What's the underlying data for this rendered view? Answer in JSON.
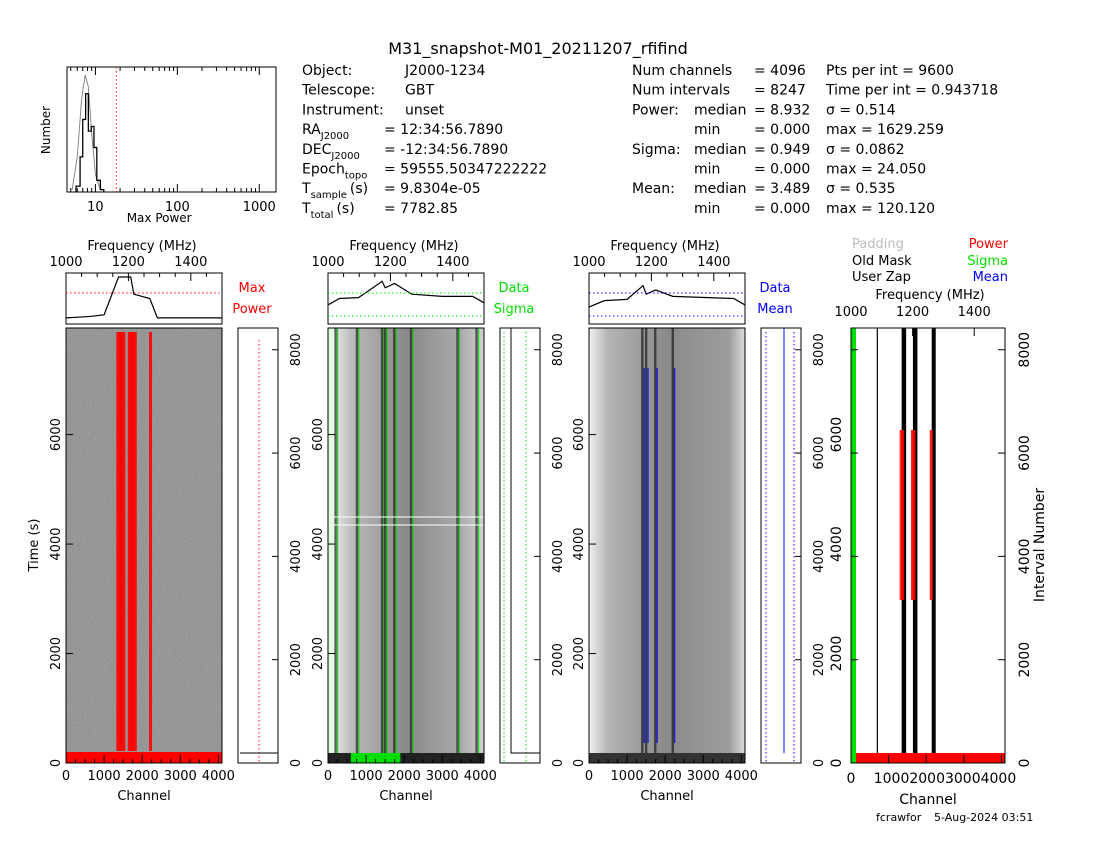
{
  "header": {
    "title": "M31_snapshot-M01_20211207_rfifind",
    "obs_info": [
      {
        "label": "Object:",
        "value": "J2000-1234"
      },
      {
        "label": "Telescope:",
        "value": "GBT"
      },
      {
        "label": "Instrument:",
        "value": "unset"
      },
      {
        "label": "RA",
        "sub": "J2000",
        "value": "= 12:34:56.7890"
      },
      {
        "label": "DEC",
        "sub": "J2000",
        "value": "= -12:34:56.7890"
      },
      {
        "label": "Epoch",
        "sub": "topo",
        "value": "= 59555.50347222222"
      },
      {
        "label": "T",
        "sub": "sample",
        "unit": "(s)",
        "value": "= 9.8304e-05"
      },
      {
        "label": "T",
        "sub": "total",
        "unit": "(s)",
        "value": "= 7782.85"
      }
    ],
    "stats": [
      {
        "group": "Num channels",
        "key": "",
        "val": "= 4096",
        "extra": "Pts per int    = 9600"
      },
      {
        "group": "Num intervals",
        "key": "",
        "val": "= 8247",
        "extra": "Time per int = 0.943718"
      },
      {
        "group": "Power:",
        "key": "median",
        "val": "= 8.932",
        "extra": "σ    = 0.514"
      },
      {
        "group": "",
        "key": "min",
        "val": "= 0.000",
        "extra": "max = 1629.259"
      },
      {
        "group": "Sigma:",
        "key": "median",
        "val": "= 0.949",
        "extra": "σ    = 0.0862"
      },
      {
        "group": "",
        "key": "min",
        "val": "= 0.000",
        "extra": "max = 24.050"
      },
      {
        "group": "Mean:",
        "key": "median",
        "val": "= 3.489",
        "extra": "σ    = 0.535"
      },
      {
        "group": "",
        "key": "min",
        "val": "= 0.000",
        "extra": "max = 120.120"
      }
    ]
  },
  "colors": {
    "axes": "#000000",
    "red": "#ff0000",
    "green": "#00dd00",
    "blue": "#0000ff",
    "grey_label": "#bbbbbb"
  },
  "chart_data": [
    {
      "type": "histogram",
      "title": "",
      "xlabel": "Max Power",
      "ylabel": "Number",
      "xscale": "log",
      "xlim": [
        4.5,
        1600
      ],
      "xticks": [
        10,
        100,
        1000
      ],
      "xtick_labels": [
        "10",
        "100",
        "1000"
      ],
      "threshold": 18,
      "values": [
        {
          "x": 5.8,
          "y": 0.05
        },
        {
          "x": 6.5,
          "y": 0.3
        },
        {
          "x": 7.0,
          "y": 0.62
        },
        {
          "x": 7.6,
          "y": 0.84
        },
        {
          "x": 8.2,
          "y": 0.52
        },
        {
          "x": 8.9,
          "y": 0.56
        },
        {
          "x": 9.6,
          "y": 0.38
        },
        {
          "x": 10.4,
          "y": 0.1
        },
        {
          "x": 11.5,
          "y": 0.02
        }
      ],
      "model": [
        {
          "x": 5.2,
          "y": 0.02
        },
        {
          "x": 6.0,
          "y": 0.3
        },
        {
          "x": 6.8,
          "y": 0.8
        },
        {
          "x": 7.5,
          "y": 1.0
        },
        {
          "x": 8.2,
          "y": 0.9
        },
        {
          "x": 9.0,
          "y": 0.5
        },
        {
          "x": 10.0,
          "y": 0.15
        },
        {
          "x": 11.5,
          "y": 0.02
        }
      ]
    },
    {
      "type": "heatmap",
      "name": "Max Power",
      "xlabel": "Channel",
      "ylabel": "Time (s)",
      "top_xlabel": "Frequency (MHz)",
      "right_ylabel": "",
      "xlim": [
        0,
        4096
      ],
      "time_lim": [
        0,
        7782.85
      ],
      "interval_lim": [
        0,
        8247
      ],
      "xticks": [
        0,
        1000,
        2000,
        3000,
        4000
      ],
      "yticks_time": [
        0,
        2000,
        4000,
        6000
      ],
      "yticks_interval": [
        0,
        2000,
        4000,
        6000,
        8000
      ],
      "freq_ticks": [
        1000,
        1200,
        1400
      ],
      "freq_lim": [
        1000,
        1500
      ],
      "legend": [
        "Max",
        "Power"
      ],
      "legend_color": "red",
      "bands": [
        1400,
        1480,
        1700,
        1780,
        2220
      ],
      "spectrum": [
        {
          "ch": 0,
          "v": 0.05
        },
        {
          "ch": 600,
          "v": 0.08
        },
        {
          "ch": 1000,
          "v": 0.12
        },
        {
          "ch": 1380,
          "v": 1.0
        },
        {
          "ch": 1500,
          "v": 1.0
        },
        {
          "ch": 1700,
          "v": 1.0
        },
        {
          "ch": 1780,
          "v": 0.6
        },
        {
          "ch": 2200,
          "v": 0.5
        },
        {
          "ch": 2400,
          "v": 0.05
        },
        {
          "ch": 4096,
          "v": 0.05
        }
      ]
    },
    {
      "type": "heatmap",
      "name": "Sigma",
      "xlabel": "Channel",
      "top_xlabel": "Frequency (MHz)",
      "xlim": [
        0,
        4096
      ],
      "xticks": [
        0,
        1000,
        2000,
        3000,
        4000
      ],
      "yticks_time": [
        0,
        2000,
        4000,
        6000
      ],
      "yticks_interval": [
        0,
        2000,
        4000,
        6000,
        8000
      ],
      "freq_ticks": [
        1000,
        1200,
        1400
      ],
      "freq_lim": [
        1000,
        1500
      ],
      "legend": [
        "Data",
        "Sigma"
      ],
      "legend_color": "green",
      "bands": [
        200,
        760,
        1420,
        1500,
        1740,
        2180,
        3400,
        3900
      ],
      "spectrum": [
        {
          "ch": 0,
          "v": 0.35
        },
        {
          "ch": 300,
          "v": 0.5
        },
        {
          "ch": 800,
          "v": 0.52
        },
        {
          "ch": 1100,
          "v": 0.7
        },
        {
          "ch": 1420,
          "v": 0.9
        },
        {
          "ch": 1500,
          "v": 0.75
        },
        {
          "ch": 1750,
          "v": 0.85
        },
        {
          "ch": 2200,
          "v": 0.6
        },
        {
          "ch": 3000,
          "v": 0.55
        },
        {
          "ch": 3800,
          "v": 0.55
        },
        {
          "ch": 4096,
          "v": 0.4
        }
      ]
    },
    {
      "type": "heatmap",
      "name": "Mean",
      "xlabel": "Channel",
      "top_xlabel": "Frequency (MHz)",
      "xlim": [
        0,
        4096
      ],
      "xticks": [
        0,
        1000,
        2000,
        3000,
        4000
      ],
      "yticks_time": [
        0,
        2000,
        4000,
        6000
      ],
      "yticks_interval": [
        0,
        2000,
        4000,
        6000,
        8000
      ],
      "freq_ticks": [
        1000,
        1200,
        1400
      ],
      "freq_lim": [
        1000,
        1500
      ],
      "legend": [
        "Data",
        "Mean"
      ],
      "legend_color": "blue",
      "bands": [
        1400,
        1500,
        1740,
        2200
      ],
      "spectrum": [
        {
          "ch": 0,
          "v": 0.3
        },
        {
          "ch": 400,
          "v": 0.45
        },
        {
          "ch": 1000,
          "v": 0.48
        },
        {
          "ch": 1420,
          "v": 0.8
        },
        {
          "ch": 1500,
          "v": 0.6
        },
        {
          "ch": 1750,
          "v": 0.7
        },
        {
          "ch": 2200,
          "v": 0.55
        },
        {
          "ch": 3800,
          "v": 0.5
        },
        {
          "ch": 4096,
          "v": 0.35
        }
      ]
    },
    {
      "type": "mask",
      "name": "Mask",
      "xlabel": "Channel",
      "top_xlabel": "Frequency (MHz)",
      "right_ylabel": "Interval Number",
      "xlim": [
        0,
        4096
      ],
      "xticks": [
        0,
        1000,
        2000,
        3000,
        4000
      ],
      "xtick_labels": [
        "0",
        "1000",
        "2000",
        "3000",
        "4000"
      ],
      "yticks_interval": [
        0,
        2000,
        4000,
        6000,
        8000
      ],
      "freq_ticks": [
        1000,
        1200,
        1400
      ],
      "freq_lim": [
        1000,
        1500
      ],
      "legend": [
        {
          "label": "Padding",
          "color": "grey_label"
        },
        {
          "label": "Power",
          "color": "red"
        },
        {
          "label": "Old Mask",
          "color": "axes"
        },
        {
          "label": "Sigma",
          "color": "green"
        },
        {
          "label": "User Zap",
          "color": "axes"
        },
        {
          "label": "Mean",
          "color": "blue"
        }
      ],
      "zapped_channels": [
        1400,
        1440,
        1700,
        1740,
        2200
      ],
      "thin_lines": [
        700,
        2200
      ]
    }
  ],
  "footer": {
    "user": "fcrawfor",
    "date": "5-Aug-2024 03:51"
  }
}
